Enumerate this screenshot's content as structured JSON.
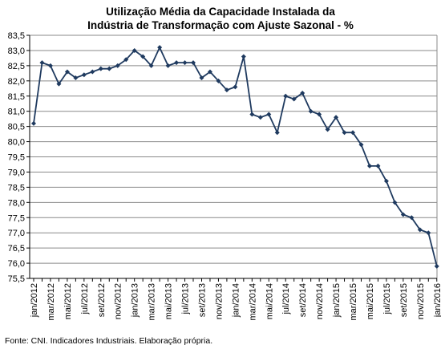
{
  "chart_data": {
    "type": "line",
    "title_lines": [
      "Utilização Média da Capacidade Instalada da",
      "Indústria de Transformação com Ajuste Sazonal - %"
    ],
    "xlabel": "",
    "ylabel": "",
    "ylim": [
      75.5,
      83.5
    ],
    "ytick_step": 0.5,
    "ytick_labels": [
      "75,5",
      "76,0",
      "76,5",
      "77,0",
      "77,5",
      "78,0",
      "78,5",
      "79,0",
      "79,5",
      "80,0",
      "80,5",
      "81,0",
      "81,5",
      "82,0",
      "82,5",
      "83,0",
      "83,5"
    ],
    "grid": true,
    "legend": "none",
    "x": [
      "jan/2012",
      "fev/2012",
      "mar/2012",
      "abr/2012",
      "mai/2012",
      "jun/2012",
      "jul/2012",
      "ago/2012",
      "set/2012",
      "out/2012",
      "nov/2012",
      "dez/2012",
      "jan/2013",
      "fev/2013",
      "mar/2013",
      "abr/2013",
      "mai/2013",
      "jun/2013",
      "jul/2013",
      "ago/2013",
      "set/2013",
      "out/2013",
      "nov/2013",
      "dez/2013",
      "jan/2014",
      "fev/2014",
      "mar/2014",
      "abr/2014",
      "mai/2014",
      "jun/2014",
      "jul/2014",
      "ago/2014",
      "set/2014",
      "out/2014",
      "nov/2014",
      "dez/2014",
      "jan/2015",
      "fev/2015",
      "mar/2015",
      "abr/2015",
      "mai/2015",
      "jun/2015",
      "jul/2015",
      "ago/2015",
      "set/2015",
      "out/2015",
      "nov/2015",
      "dez/2015",
      "jan/2016"
    ],
    "xtick_labels": [
      "jan/2012",
      "mar/2012",
      "mai/2012",
      "jul/2012",
      "set/2012",
      "nov/2012",
      "jan/2013",
      "mar/2013",
      "mai/2013",
      "jul/2013",
      "set/2013",
      "nov/2013",
      "jan/2014",
      "mar/2014",
      "mai/2014",
      "jul/2014",
      "set/2014",
      "nov/2014",
      "jan/2015",
      "mar/2015",
      "mai/2015",
      "jul/2015",
      "set/2015",
      "nov/2015",
      "jan/2016"
    ],
    "series": [
      {
        "values": [
          80.6,
          82.6,
          82.5,
          81.9,
          82.3,
          82.1,
          82.2,
          82.3,
          82.4,
          82.4,
          82.5,
          82.7,
          83.0,
          82.8,
          82.5,
          83.1,
          82.5,
          82.6,
          82.6,
          82.6,
          82.1,
          82.3,
          82.0,
          81.7,
          81.8,
          82.8,
          80.9,
          80.8,
          80.9,
          80.3,
          81.5,
          81.4,
          81.6,
          81.0,
          80.9,
          80.4,
          80.8,
          80.3,
          80.3,
          79.9,
          79.2,
          79.2,
          78.7,
          78.0,
          77.6,
          77.5,
          77.1,
          77.0,
          75.9
        ]
      }
    ],
    "colors": {
      "line": "#1f3a5f",
      "grid": "#8a8a8a",
      "axis": "#000000"
    }
  },
  "source_note": "Fonte: CNI. Indicadores Industriais. Elaboração própria."
}
